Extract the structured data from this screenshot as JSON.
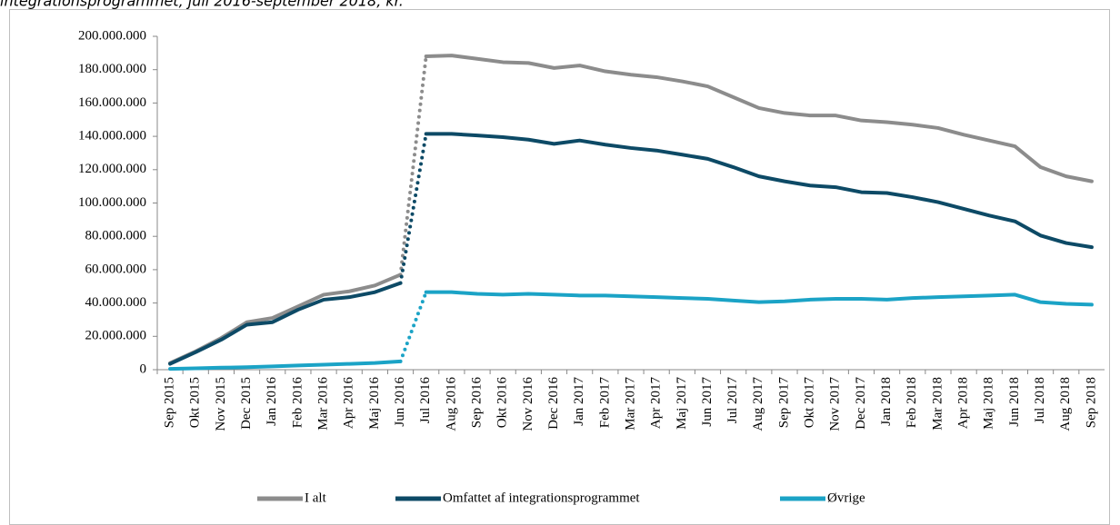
{
  "chart_data": {
    "type": "line",
    "title": "integrationsprogrammet, juli 2016-september 2018, kr.",
    "categories": [
      "Sep 2015",
      "Okt 2015",
      "Nov 2015",
      "Dec 2015",
      "Jan 2016",
      "Feb 2016",
      "Mar 2016",
      "Apr 2016",
      "Maj 2016",
      "Jun 2016",
      "Jul 2016",
      "Aug 2016",
      "Sep 2016",
      "Okt 2016",
      "Nov 2016",
      "Dec 2016",
      "Jan 2017",
      "Feb 2017",
      "Mar 2017",
      "Apr 2017",
      "Maj 2017",
      "Jun 2017",
      "Jul 2017",
      "Aug 2017",
      "Sep 2017",
      "Okt 2017",
      "Nov 2017",
      "Dec 2017",
      "Jan 2018",
      "Feb 2018",
      "Mar 2018",
      "Apr 2018",
      "Maj 2018",
      "Jun 2018",
      "Jul 2018",
      "Aug 2018",
      "Sep 2018"
    ],
    "series": [
      {
        "name": "I alt",
        "color": "#8c8c8c",
        "values": [
          4000000,
          11000000,
          19000000,
          28500000,
          31000000,
          38000000,
          45000000,
          47000000,
          50500000,
          57000000,
          188000000,
          188500000,
          186500000,
          184500000,
          184000000,
          181000000,
          182500000,
          179000000,
          177000000,
          175500000,
          173000000,
          170000000,
          163500000,
          157000000,
          154000000,
          152500000,
          152500000,
          149500000,
          148500000,
          147000000,
          145000000,
          141000000,
          137500000,
          134000000,
          121500000,
          116000000,
          113000000
        ]
      },
      {
        "name": "Omfattet af integrationsprogrammet",
        "color": "#0d4a66",
        "values": [
          3500000,
          10500000,
          18000000,
          27000000,
          28500000,
          36000000,
          42000000,
          43500000,
          46500000,
          52000000,
          141500000,
          141500000,
          140500000,
          139500000,
          138000000,
          135500000,
          137500000,
          135000000,
          133000000,
          131500000,
          129000000,
          126500000,
          121500000,
          116000000,
          113000000,
          110500000,
          109500000,
          106500000,
          106000000,
          103500000,
          100500000,
          96500000,
          92500000,
          89000000,
          80500000,
          76000000,
          73500000
        ]
      },
      {
        "name": "Øvrige",
        "color": "#1ba3c6",
        "values": [
          500000,
          800000,
          1200000,
          1500000,
          2000000,
          2500000,
          3000000,
          3500000,
          4000000,
          5000000,
          46500000,
          46500000,
          45500000,
          45000000,
          45500000,
          45000000,
          44500000,
          44500000,
          44000000,
          43500000,
          43000000,
          42500000,
          41500000,
          40500000,
          41000000,
          42000000,
          42500000,
          42500000,
          42000000,
          43000000,
          43500000,
          44000000,
          44500000,
          45000000,
          40500000,
          39500000,
          39000000
        ]
      }
    ],
    "dotted_segment": [
      "Jun 2016",
      "Jul 2016"
    ],
    "ylim": [
      0,
      200000000
    ],
    "yticks": [
      0,
      {
        "value": 20000000,
        "label": "20.000.000"
      },
      {
        "value": 40000000,
        "label": "40.000.000"
      },
      {
        "value": 60000000,
        "label": "60.000.000"
      },
      {
        "value": 80000000,
        "label": "80.000.000"
      },
      {
        "value": 100000000,
        "label": "100.000.000"
      },
      {
        "value": 120000000,
        "label": "120.000.000"
      },
      {
        "value": 140000000,
        "label": "140.000.000"
      },
      {
        "value": 160000000,
        "label": "160.000.000"
      },
      {
        "value": 180000000,
        "label": "180.000.000"
      },
      {
        "value": 200000000,
        "label": "200.000.000"
      }
    ],
    "legend": "bottom"
  }
}
